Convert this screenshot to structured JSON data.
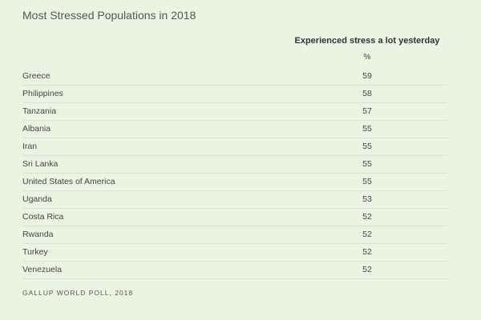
{
  "header": {
    "title": "Most Stressed Populations in 2018"
  },
  "table": {
    "column_header": "Experienced stress a lot yesterday",
    "unit": "%",
    "rows": [
      {
        "label": "Greece",
        "value": 59
      },
      {
        "label": "Philippines",
        "value": 58
      },
      {
        "label": "Tanzania",
        "value": 57
      },
      {
        "label": "Albania",
        "value": 55
      },
      {
        "label": "Iran",
        "value": 55
      },
      {
        "label": "Sri Lanka",
        "value": 55
      },
      {
        "label": "United States of America",
        "value": 55
      },
      {
        "label": "Uganda",
        "value": 53
      },
      {
        "label": "Costa Rica",
        "value": 52
      },
      {
        "label": "Rwanda",
        "value": 52
      },
      {
        "label": "Turkey",
        "value": 52
      },
      {
        "label": "Venezuela",
        "value": 52
      }
    ]
  },
  "footer": {
    "source": "GALLUP WORLD POLL, 2018"
  }
}
